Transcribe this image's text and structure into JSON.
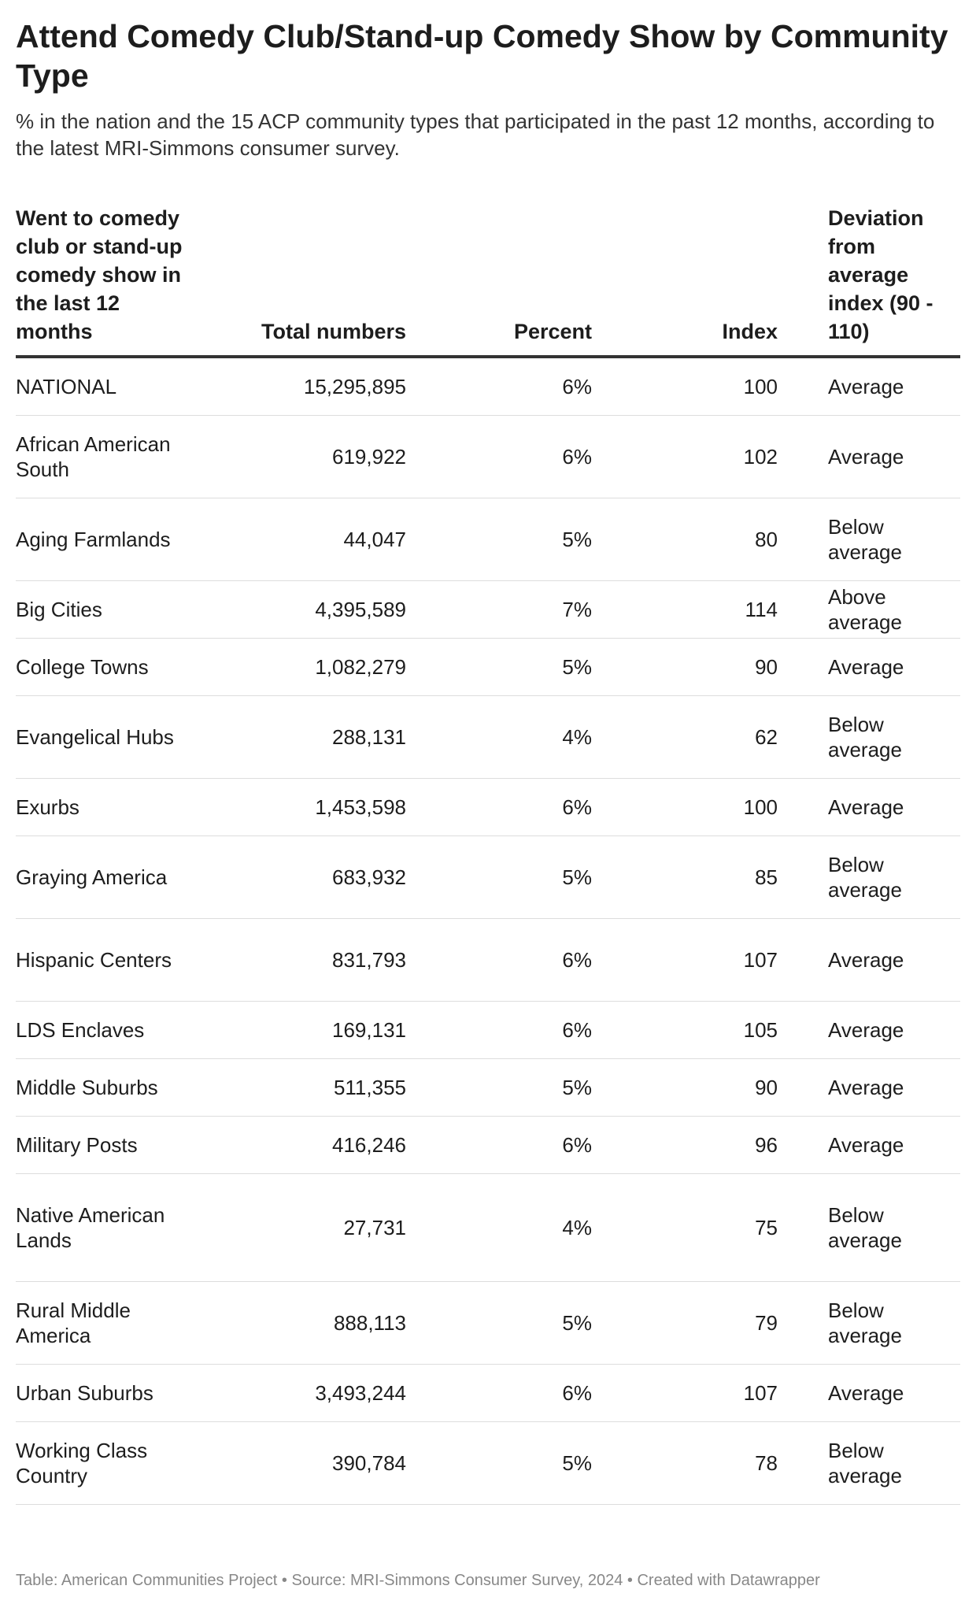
{
  "chart_data": {
    "type": "table",
    "title": "Attend Comedy Club/Stand-up Comedy Show by Community Type",
    "subtitle": "% in the nation and the 15 ACP community types that participated in the past 12 months, according to the latest MRI-Simmons consumer survey.",
    "columns": [
      "Went to comedy club or stand-up comedy show in the last 12 months",
      "Total numbers",
      "Percent",
      "Index",
      "Deviation from average index (90 - 110)"
    ],
    "rows": [
      {
        "name": "NATIONAL",
        "total": "15,295,895",
        "percent": "6%",
        "index": "100",
        "deviation": "Average"
      },
      {
        "name": "African American South",
        "total": "619,922",
        "percent": "6%",
        "index": "102",
        "deviation": "Average"
      },
      {
        "name": "Aging Farmlands",
        "total": "44,047",
        "percent": "5%",
        "index": "80",
        "deviation": "Below average"
      },
      {
        "name": "Big Cities",
        "total": "4,395,589",
        "percent": "7%",
        "index": "114",
        "deviation": "Above average"
      },
      {
        "name": "College Towns",
        "total": "1,082,279",
        "percent": "5%",
        "index": "90",
        "deviation": "Average"
      },
      {
        "name": "Evangelical Hubs",
        "total": "288,131",
        "percent": "4%",
        "index": "62",
        "deviation": "Below average"
      },
      {
        "name": "Exurbs",
        "total": "1,453,598",
        "percent": "6%",
        "index": "100",
        "deviation": "Average"
      },
      {
        "name": "Graying America",
        "total": "683,932",
        "percent": "5%",
        "index": "85",
        "deviation": "Below average"
      },
      {
        "name": "Hispanic Centers",
        "total": "831,793",
        "percent": "6%",
        "index": "107",
        "deviation": "Average"
      },
      {
        "name": "LDS Enclaves",
        "total": "169,131",
        "percent": "6%",
        "index": "105",
        "deviation": "Average"
      },
      {
        "name": "Middle Suburbs",
        "total": "511,355",
        "percent": "5%",
        "index": "90",
        "deviation": "Average"
      },
      {
        "name": "Military Posts",
        "total": "416,246",
        "percent": "6%",
        "index": "96",
        "deviation": "Average"
      },
      {
        "name": "Native American Lands",
        "total": "27,731",
        "percent": "4%",
        "index": "75",
        "deviation": "Below average"
      },
      {
        "name": "Rural Middle America",
        "total": "888,113",
        "percent": "5%",
        "index": "79",
        "deviation": "Below average"
      },
      {
        "name": "Urban Suburbs",
        "total": "3,493,244",
        "percent": "6%",
        "index": "107",
        "deviation": "Average"
      },
      {
        "name": "Working Class Country",
        "total": "390,784",
        "percent": "5%",
        "index": "78",
        "deviation": "Below average"
      }
    ],
    "footer": "Table: American Communities Project • Source: MRI-Simmons Consumer Survey, 2024 • Created with Datawrapper"
  }
}
